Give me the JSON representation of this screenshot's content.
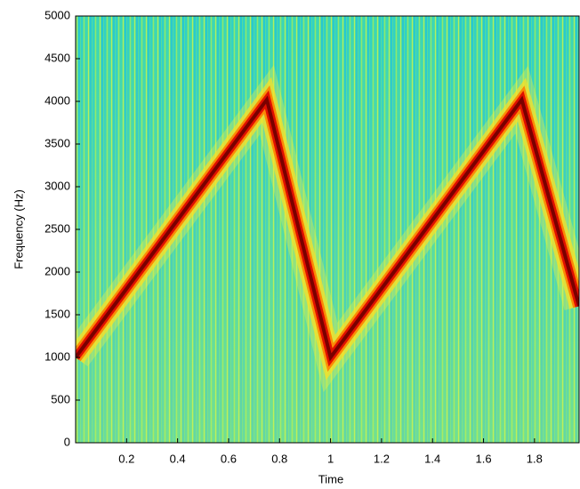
{
  "chart_data": {
    "type": "spectrogram",
    "x_label": "Time",
    "y_label": "Frequency (Hz)",
    "series": [
      {
        "name": "ridge",
        "color": "#7a0000",
        "x": [
          0,
          0.75,
          1.0,
          1.75,
          1.975
        ],
        "values": [
          1000,
          4020,
          1000,
          4020,
          1600
        ]
      }
    ],
    "xlim": [
      0,
      1.975
    ],
    "xticks": [
      0.2,
      0.4,
      0.6,
      0.8,
      1,
      1.2,
      1.4,
      1.6,
      1.8
    ],
    "ylim": [
      0,
      5000
    ],
    "yticks": [
      0,
      500,
      1000,
      1500,
      2000,
      2500,
      3000,
      3500,
      4000,
      4500,
      5000
    ]
  }
}
